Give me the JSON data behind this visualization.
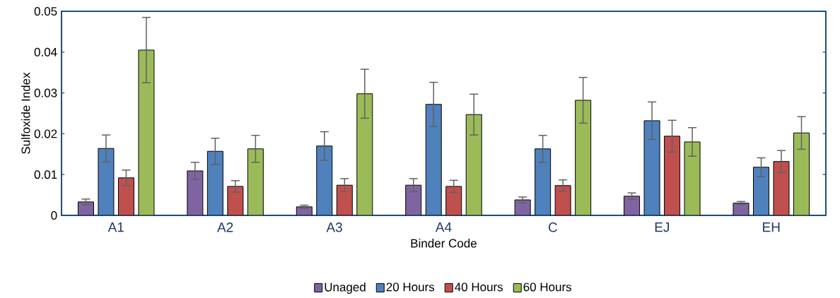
{
  "chart_data": {
    "type": "bar",
    "xlabel": "Binder Code",
    "ylabel": "Sulfoxide Index",
    "categories": [
      "A1",
      "A2",
      "A3",
      "A4",
      "C",
      "EJ",
      "EH"
    ],
    "ylim": [
      0,
      0.05
    ],
    "yticks": [
      0,
      0.01,
      0.02,
      0.03,
      0.04,
      0.05
    ],
    "legend": "bottom",
    "series": [
      {
        "name": "Unaged",
        "color": "#8064a2",
        "values": [
          0.0033,
          0.0109,
          0.0021,
          0.0074,
          0.0038,
          0.0047,
          0.003
        ],
        "errors": [
          0.0007,
          0.0021,
          0.0004,
          0.0016,
          0.0007,
          0.0008,
          0.0004
        ]
      },
      {
        "name": "20 Hours",
        "color": "#4f81bd",
        "values": [
          0.0164,
          0.0157,
          0.017,
          0.0272,
          0.0163,
          0.0232,
          0.0118
        ],
        "errors": [
          0.0033,
          0.0032,
          0.0035,
          0.0054,
          0.0033,
          0.0046,
          0.0023
        ]
      },
      {
        "name": "40 Hours",
        "color": "#c0504d",
        "values": [
          0.0092,
          0.0071,
          0.0074,
          0.0071,
          0.0073,
          0.0194,
          0.0132
        ],
        "errors": [
          0.0019,
          0.0014,
          0.0016,
          0.0015,
          0.0014,
          0.0039,
          0.0027
        ]
      },
      {
        "name": "60 Hours",
        "color": "#9bbb59",
        "values": [
          0.0405,
          0.0163,
          0.0298,
          0.0247,
          0.0282,
          0.018,
          0.0202
        ],
        "errors": [
          0.008,
          0.0033,
          0.006,
          0.005,
          0.0056,
          0.0035,
          0.004
        ]
      }
    ]
  }
}
